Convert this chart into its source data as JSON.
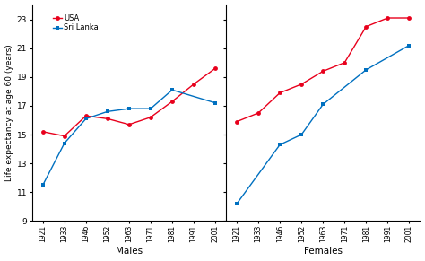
{
  "years": [
    "1921",
    "1933",
    "1946",
    "1952",
    "1963",
    "1971",
    "1981",
    "1991",
    "2001"
  ],
  "males_usa_idx": [
    0,
    1,
    2,
    3,
    4,
    5,
    6,
    7,
    8
  ],
  "males_usa_vals": [
    15.2,
    14.9,
    16.3,
    16.1,
    15.7,
    16.2,
    17.3,
    18.5,
    19.6
  ],
  "males_sl_idx": [
    0,
    1,
    2,
    3,
    4,
    5,
    6,
    8
  ],
  "males_sl_vals": [
    11.5,
    14.4,
    16.1,
    16.6,
    16.8,
    16.8,
    18.1,
    17.2
  ],
  "females_usa_idx": [
    0,
    1,
    2,
    3,
    4,
    5,
    6,
    7,
    8
  ],
  "females_usa_vals": [
    15.9,
    16.5,
    17.9,
    18.5,
    19.4,
    20.0,
    22.5,
    23.1,
    23.1
  ],
  "females_sl_idx": [
    0,
    2,
    3,
    4,
    6,
    8
  ],
  "females_sl_vals": [
    10.2,
    14.3,
    15.0,
    17.1,
    19.5,
    21.2
  ],
  "color_usa": "#e8001c",
  "color_srilanka": "#0070c0",
  "ylim": [
    9,
    24
  ],
  "yticks": [
    9,
    11,
    13,
    15,
    17,
    19,
    21,
    23
  ],
  "ylabel": "Life expectancy at age 60 (years)",
  "xlabel_left": "Males",
  "xlabel_right": "Females",
  "legend_usa": "USA",
  "legend_srilanka": "Sri Lanka"
}
